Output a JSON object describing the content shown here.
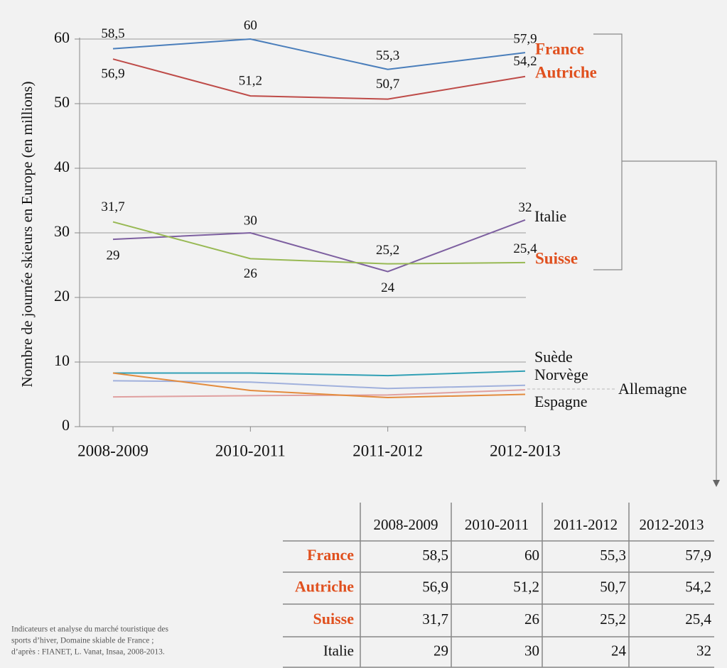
{
  "chart_data": {
    "type": "line",
    "y_label": "Nombre de journée skieurs en Europe (en millions)",
    "categories": [
      "2008-2009",
      "2010-2011",
      "2011-2012",
      "2012-2013"
    ],
    "ylim": [
      0,
      60
    ],
    "yticks": [
      0,
      10,
      20,
      30,
      40,
      50,
      60
    ],
    "grid": true,
    "series": [
      {
        "name": "France",
        "color": "#4a7ebb",
        "label_color": "#e0501e",
        "label_bold": true,
        "values": [
          58.5,
          60,
          55.3,
          57.9
        ],
        "value_labels": [
          "58,5",
          "60",
          "55,3",
          "57,9"
        ]
      },
      {
        "name": "Autriche",
        "color": "#be4b48",
        "label_color": "#e0501e",
        "label_bold": true,
        "values": [
          56.9,
          51.2,
          50.7,
          54.2
        ],
        "value_labels": [
          "56,9",
          "51,2",
          "50,7",
          "54,2"
        ]
      },
      {
        "name": "Italie",
        "color": "#7d5fa0",
        "label_color": "#111111",
        "label_bold": false,
        "values": [
          29,
          30,
          24,
          32
        ],
        "value_labels": [
          "29",
          "30",
          "24",
          "32"
        ]
      },
      {
        "name": "Suisse",
        "color": "#98b954",
        "label_color": "#e0501e",
        "label_bold": true,
        "values": [
          31.7,
          26,
          25.2,
          25.4
        ],
        "value_labels": [
          "31,7",
          "26",
          "25,2",
          "25,4"
        ]
      },
      {
        "name": "Suède",
        "color": "#31a0b5",
        "label_color": "#111111",
        "label_bold": false,
        "values": [
          8.3,
          8.3,
          7.9,
          8.6
        ]
      },
      {
        "name": "Norvège",
        "color": "#a0b0dc",
        "label_color": "#111111",
        "label_bold": false,
        "values": [
          7.1,
          6.9,
          5.9,
          6.4
        ]
      },
      {
        "name": "Allemagne",
        "color": "#e0a0a0",
        "label_color": "#111111",
        "label_bold": false,
        "values": [
          4.6,
          4.8,
          4.9,
          5.7
        ]
      },
      {
        "name": "Espagne",
        "color": "#e38b3d",
        "label_color": "#111111",
        "label_bold": false,
        "values": [
          8.3,
          5.6,
          4.5,
          5.0
        ]
      }
    ]
  },
  "table": {
    "header": [
      "2008-2009",
      "2010-2011",
      "2011-2012",
      "2012-2013"
    ],
    "rows": [
      {
        "name": "France",
        "highlight": true,
        "cells": [
          "58,5",
          "60",
          "55,3",
          "57,9"
        ]
      },
      {
        "name": "Autriche",
        "highlight": true,
        "cells": [
          "56,9",
          "51,2",
          "50,7",
          "54,2"
        ]
      },
      {
        "name": "Suisse",
        "highlight": true,
        "cells": [
          "31,7",
          "26",
          "25,2",
          "25,4"
        ]
      },
      {
        "name": "Italie",
        "highlight": false,
        "cells": [
          "29",
          "30",
          "24",
          "32"
        ]
      }
    ]
  },
  "source": [
    "Indicateurs et analyse du marché touristique des",
    "sports d’hiver, Domaine skiable de France ;",
    "d’après : FIANET, L. Vanat, Insaa, 2008-2013."
  ]
}
